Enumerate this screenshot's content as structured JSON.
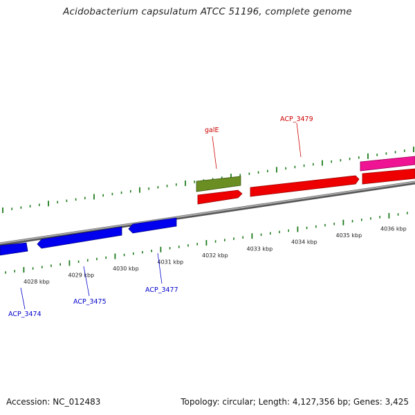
{
  "title": "Acidobacterium capsulatum ATCC 51196, complete genome",
  "footer": {
    "accession": "Accession: NC_012483",
    "summary": "Topology: circular; Length: 4,127,356 bp; Genes: 3,425"
  },
  "colors": {
    "reverse_gene": "#0000ee",
    "forward_gene": "#ee0000",
    "galE_gene": "#6b8e23",
    "pink_gene": "#ee1493",
    "backbone": "#888888",
    "ticks": "#1a7a1a"
  },
  "ticks": [
    {
      "label": "4028 kbp"
    },
    {
      "label": "4029 kbp"
    },
    {
      "label": "4030 kbp"
    },
    {
      "label": "4031 kbp"
    },
    {
      "label": "4032 kbp"
    },
    {
      "label": "4033 kbp"
    },
    {
      "label": "4034 kbp"
    },
    {
      "label": "4035 kbp"
    },
    {
      "label": "4036 kbp"
    }
  ],
  "gene_labels": [
    {
      "name": "ACP_3474",
      "strand": "reverse"
    },
    {
      "name": "ACP_3475",
      "strand": "reverse"
    },
    {
      "name": "ACP_3477",
      "strand": "reverse"
    },
    {
      "name": "galE",
      "strand": "forward"
    },
    {
      "name": "ACP_3479",
      "strand": "forward"
    }
  ]
}
